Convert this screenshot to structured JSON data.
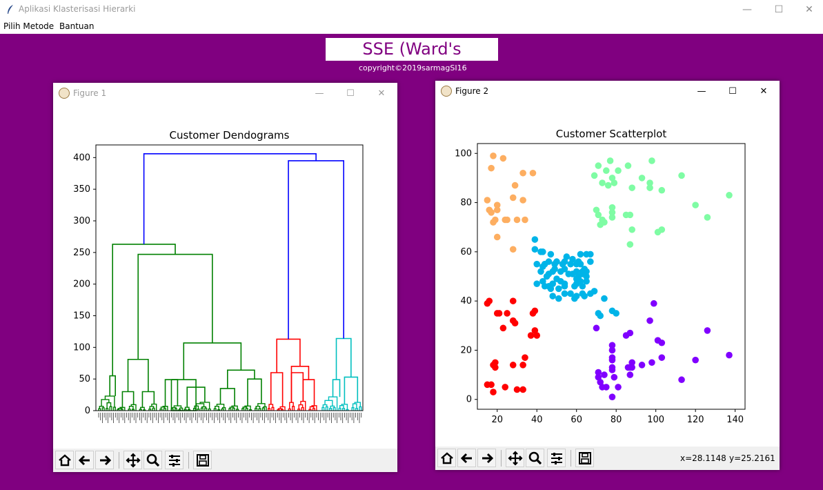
{
  "window": {
    "title": "Aplikasi Klasterisasi Hierarki",
    "minimize": "—",
    "maximize": "☐",
    "close": "✕"
  },
  "menu": {
    "items": [
      "Pilih Metode",
      "Bantuan"
    ]
  },
  "header": {
    "title": "SSE (Ward's Method)",
    "copyright": "copyright©2019sarmagSI16"
  },
  "figure1": {
    "window_title": "Figure 1",
    "controls": {
      "minimize": "—",
      "maximize": "☐",
      "close": "✕"
    }
  },
  "figure2": {
    "window_title": "Figure 2",
    "controls": {
      "minimize": "—",
      "maximize": "☐",
      "close": "✕"
    },
    "coord_x": "x=28.1148",
    "coord_y": "y=25.2161"
  },
  "toolbar_buttons": [
    "home-icon",
    "back-arrow-icon",
    "forward-arrow-icon",
    "pan-icon",
    "zoom-icon",
    "configure-subplots-icon",
    "save-icon"
  ],
  "colors": {
    "background": "#800080",
    "dendro_top": "#0000ff",
    "dendro_green": "#008000",
    "dendro_red": "#ff0000",
    "dendro_cyan": "#00bfbf",
    "cluster_orange": "#fdae61",
    "cluster_green": "#7ffca4",
    "cluster_blue": "#00b4e8",
    "cluster_red": "#ff0000",
    "cluster_purple": "#8000ff"
  },
  "chart_data": [
    {
      "type": "dendrogram",
      "title": "Customer Dendograms",
      "ylim": [
        0,
        420
      ],
      "yticks": [
        0,
        50,
        100,
        150,
        200,
        250,
        300,
        350,
        400
      ],
      "merges": [
        {
          "left": "green_cluster",
          "right": "red_cyan_cluster",
          "height": 406,
          "color": "blue"
        },
        {
          "left": "red_cluster",
          "right": "cyan_cluster",
          "height": 395,
          "color": "blue"
        },
        {
          "left": "green_left",
          "right": "green_right",
          "height": 263,
          "color": "green"
        },
        {
          "left": "green_left_a",
          "right": "green_left_b",
          "height": 247,
          "color": "green"
        },
        {
          "left": "red_a",
          "right": "red_b",
          "height": 113,
          "color": "red"
        },
        {
          "left": "cyan_a",
          "right": "cyan_b",
          "height": 114,
          "color": "cyan"
        },
        {
          "left": "green_mid_a",
          "right": "green_mid_b",
          "height": 107,
          "color": "green"
        },
        {
          "left": "green_sub",
          "right": "green_sub2",
          "height": 81,
          "color": "green"
        }
      ],
      "grid": false
    },
    {
      "type": "scatter",
      "title": "Customer Scatterplot",
      "xlim": [
        10,
        145
      ],
      "ylim": [
        -4,
        104
      ],
      "xticks": [
        20,
        40,
        60,
        80,
        100,
        120,
        140
      ],
      "yticks": [
        0,
        20,
        40,
        60,
        80,
        100
      ],
      "grid": false,
      "series": [
        {
          "color": "#fdae61",
          "points": [
            [
              15,
              81
            ],
            [
              16,
              77
            ],
            [
              17,
              76
            ],
            [
              17,
              94
            ],
            [
              18,
              99
            ],
            [
              18,
              72
            ],
            [
              19,
              73
            ],
            [
              20,
              79
            ],
            [
              20,
              77
            ],
            [
              20,
              66
            ],
            [
              23,
              98
            ],
            [
              24,
              73
            ],
            [
              25,
              73
            ],
            [
              28,
              82
            ],
            [
              28,
              61
            ],
            [
              29,
              87
            ],
            [
              30,
              73
            ],
            [
              33,
              81
            ],
            [
              33,
              92
            ],
            [
              34,
              73
            ],
            [
              38,
              92
            ]
          ]
        },
        {
          "color": "#7ffca4",
          "points": [
            [
              69,
              91
            ],
            [
              70,
              77
            ],
            [
              71,
              95
            ],
            [
              71,
              75
            ],
            [
              72,
              71
            ],
            [
              73,
              88
            ],
            [
              73,
              73
            ],
            [
              74,
              72
            ],
            [
              75,
              93
            ],
            [
              76,
              87
            ],
            [
              77,
              97
            ],
            [
              78,
              90
            ],
            [
              78,
              78
            ],
            [
              78,
              74
            ],
            [
              78,
              76
            ],
            [
              79,
              88
            ],
            [
              81,
              93
            ],
            [
              85,
              75
            ],
            [
              86,
              95
            ],
            [
              87,
              63
            ],
            [
              87,
              75
            ],
            [
              88,
              69
            ],
            [
              88,
              86
            ],
            [
              93,
              90
            ],
            [
              97,
              86
            ],
            [
              97,
              88
            ],
            [
              98,
              97
            ],
            [
              101,
              68
            ],
            [
              103,
              69
            ],
            [
              103,
              85
            ],
            [
              113,
              91
            ],
            [
              120,
              79
            ],
            [
              126,
              74
            ],
            [
              137,
              83
            ]
          ]
        },
        {
          "color": "#00b4e8",
          "points": [
            [
              39,
              61
            ],
            [
              39,
              65
            ],
            [
              40,
              55
            ],
            [
              40,
              47
            ],
            [
              42,
              60
            ],
            [
              42,
              52
            ],
            [
              43,
              60
            ],
            [
              43,
              54
            ],
            [
              43,
              48
            ],
            [
              44,
              46
            ],
            [
              45,
              50
            ],
            [
              46,
              51
            ],
            [
              46,
              56
            ],
            [
              47,
              59
            ],
            [
              48,
              52
            ],
            [
              48,
              47
            ],
            [
              48,
              42
            ],
            [
              49,
              55
            ],
            [
              50,
              49
            ],
            [
              50,
              56
            ],
            [
              51,
              41
            ],
            [
              52,
              48
            ],
            [
              52,
              52
            ],
            [
              54,
              56
            ],
            [
              54,
              47
            ],
            [
              54,
              53
            ],
            [
              54,
              46
            ],
            [
              55,
              58
            ],
            [
              57,
              55
            ],
            [
              57,
              43
            ],
            [
              58,
              51
            ],
            [
              59,
              41
            ],
            [
              59,
              46
            ],
            [
              60,
              55
            ],
            [
              60,
              49
            ],
            [
              60,
              52
            ],
            [
              60,
              47
            ],
            [
              60,
              42
            ],
            [
              61,
              56
            ],
            [
              61,
              50
            ],
            [
              62,
              55
            ],
            [
              62,
              59
            ],
            [
              62,
              48
            ],
            [
              63,
              43
            ],
            [
              63,
              46
            ],
            [
              63,
              51
            ],
            [
              63,
              52
            ],
            [
              64,
              42
            ],
            [
              64,
              53
            ],
            [
              65,
              48
            ],
            [
              65,
              50
            ],
            [
              65,
              59
            ],
            [
              65,
              52
            ],
            [
              67,
              56
            ],
            [
              67,
              43
            ],
            [
              67,
              59
            ],
            [
              69,
              44
            ],
            [
              71,
              35
            ],
            [
              72,
              34
            ],
            [
              74,
              41
            ],
            [
              78,
              36
            ],
            [
              80,
              35
            ],
            [
              54,
              43
            ],
            [
              56,
              51
            ],
            [
              53,
              55
            ],
            [
              58,
              57
            ],
            [
              47,
              45
            ],
            [
              49,
              53
            ],
            [
              51,
              45
            ],
            [
              44,
              55
            ],
            [
              46,
              46
            ]
          ]
        },
        {
          "color": "#ff0000",
          "points": [
            [
              15,
              6
            ],
            [
              15,
              39
            ],
            [
              16,
              40
            ],
            [
              17,
              6
            ],
            [
              18,
              3
            ],
            [
              18,
              14
            ],
            [
              19,
              15
            ],
            [
              19,
              13
            ],
            [
              20,
              35
            ],
            [
              21,
              35
            ],
            [
              23,
              29
            ],
            [
              24,
              5
            ],
            [
              25,
              35
            ],
            [
              28,
              14
            ],
            [
              28,
              32
            ],
            [
              29,
              31
            ],
            [
              30,
              4
            ],
            [
              33,
              4
            ],
            [
              33,
              14
            ],
            [
              34,
              17
            ],
            [
              37,
              26
            ],
            [
              38,
              35
            ],
            [
              39,
              28
            ],
            [
              39,
              36
            ],
            [
              40,
              26
            ],
            [
              28,
              40
            ]
          ]
        },
        {
          "color": "#8000ff",
          "points": [
            [
              70,
              29
            ],
            [
              71,
              11
            ],
            [
              71,
              9
            ],
            [
              72,
              7
            ],
            [
              73,
              5
            ],
            [
              74,
              10
            ],
            [
              75,
              5
            ],
            [
              78,
              1
            ],
            [
              78,
              22
            ],
            [
              78,
              20
            ],
            [
              78,
              16
            ],
            [
              78,
              17
            ],
            [
              78,
              13
            ],
            [
              78,
              12
            ],
            [
              79,
              9
            ],
            [
              81,
              5
            ],
            [
              85,
              26
            ],
            [
              86,
              13
            ],
            [
              87,
              27
            ],
            [
              87,
              10
            ],
            [
              87,
              13
            ],
            [
              88,
              15
            ],
            [
              88,
              13
            ],
            [
              93,
              14
            ],
            [
              97,
              32
            ],
            [
              98,
              15
            ],
            [
              99,
              39
            ],
            [
              101,
              24
            ],
            [
              103,
              17
            ],
            [
              103,
              23
            ],
            [
              113,
              8
            ],
            [
              120,
              16
            ],
            [
              126,
              28
            ],
            [
              137,
              18
            ]
          ]
        }
      ]
    }
  ]
}
